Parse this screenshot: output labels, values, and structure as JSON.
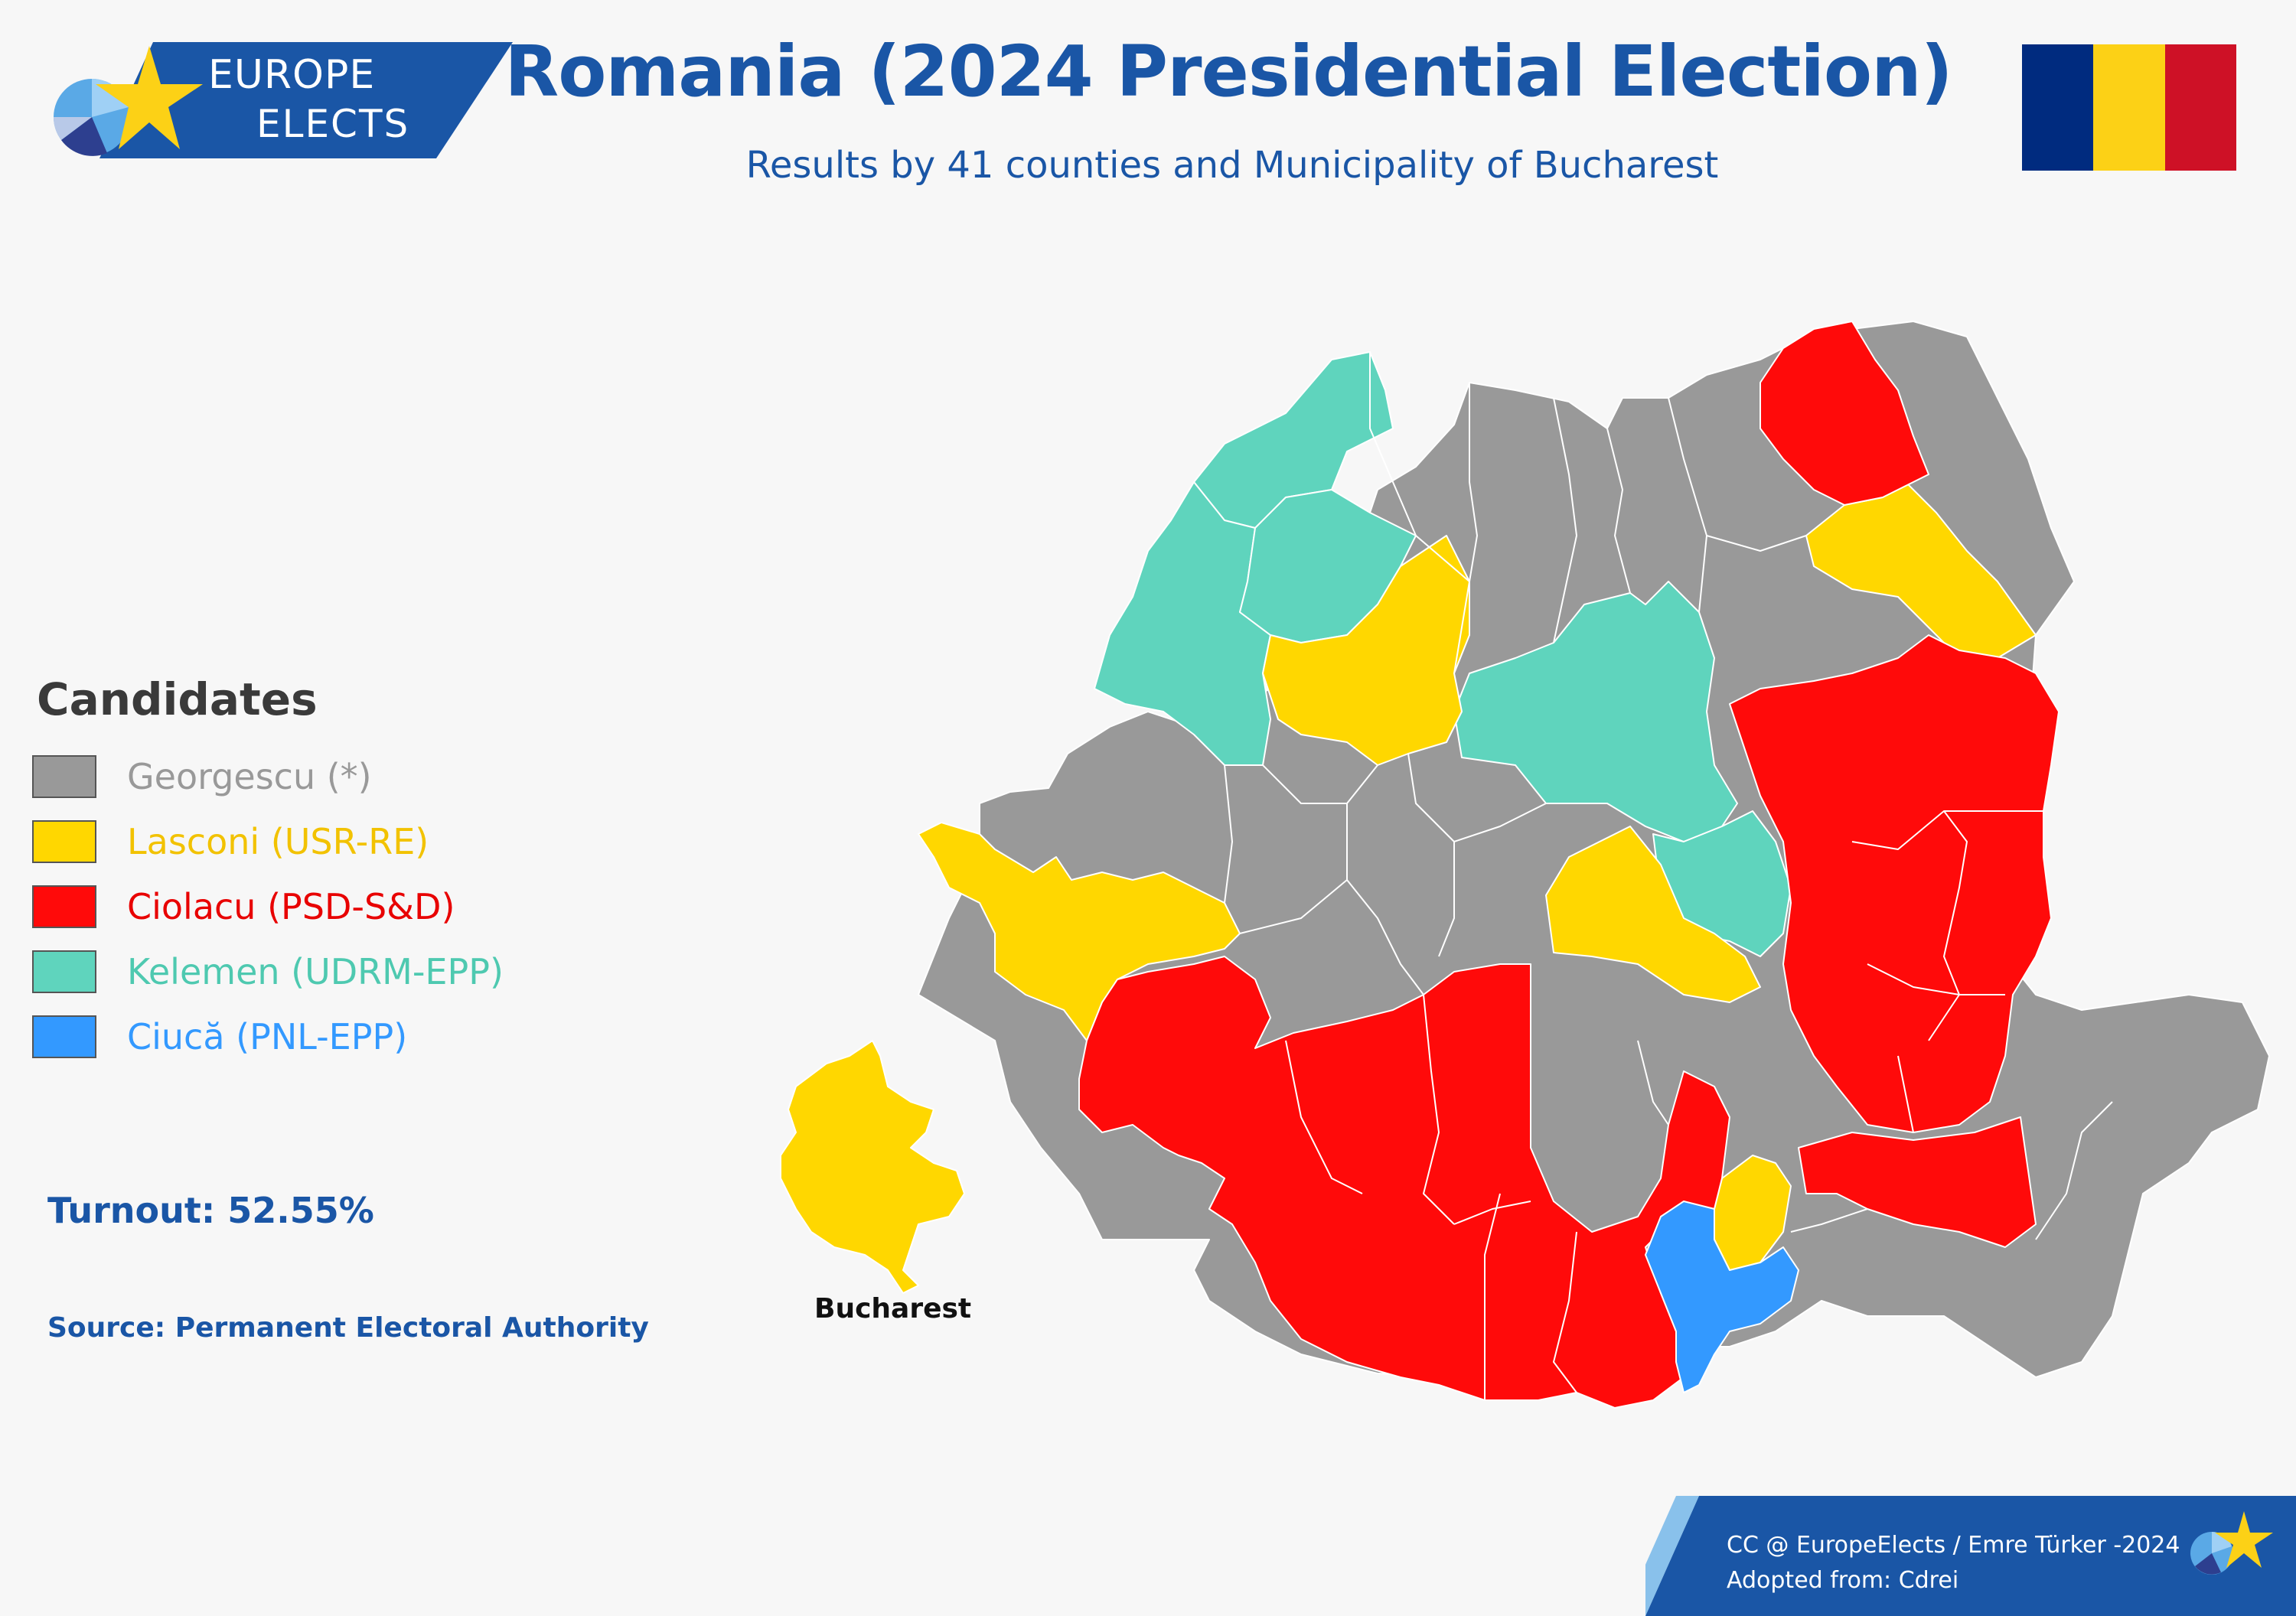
{
  "header": {
    "logo_line1": "EUROPE",
    "logo_line2": "ELECTS",
    "title": "Romania (2024 Presidential Election)",
    "subtitle": "Results by 41 counties and Municipality of Bucharest"
  },
  "flag_colors": [
    "#002b7f",
    "#fcd116",
    "#ce1126"
  ],
  "legend": {
    "title": "Candidates",
    "items": [
      {
        "label": "Georgescu (*)",
        "color": "#999999",
        "text_color": "#999999"
      },
      {
        "label": "Lasconi (USR-RE)",
        "color": "#ffd700",
        "text_color": "#f2c200"
      },
      {
        "label": "Ciolacu (PSD-S&D)",
        "color": "#ff0a0a",
        "text_color": "#e80000"
      },
      {
        "label": "Kelemen (UDRM-EPP)",
        "color": "#5fd4bd",
        "text_color": "#4ec9b0"
      },
      {
        "label": "Ciucă (PNL-EPP)",
        "color": "#3399ff",
        "text_color": "#3399ff"
      }
    ]
  },
  "turnout": "Turnout: 52.55%",
  "source": "Source: Permanent Electoral Authority",
  "inset_label": "Bucharest",
  "footer": {
    "line1": "CC @ EuropeElects / Emre Türker -2024",
    "line2": "Adopted from: Cdrei"
  }
}
